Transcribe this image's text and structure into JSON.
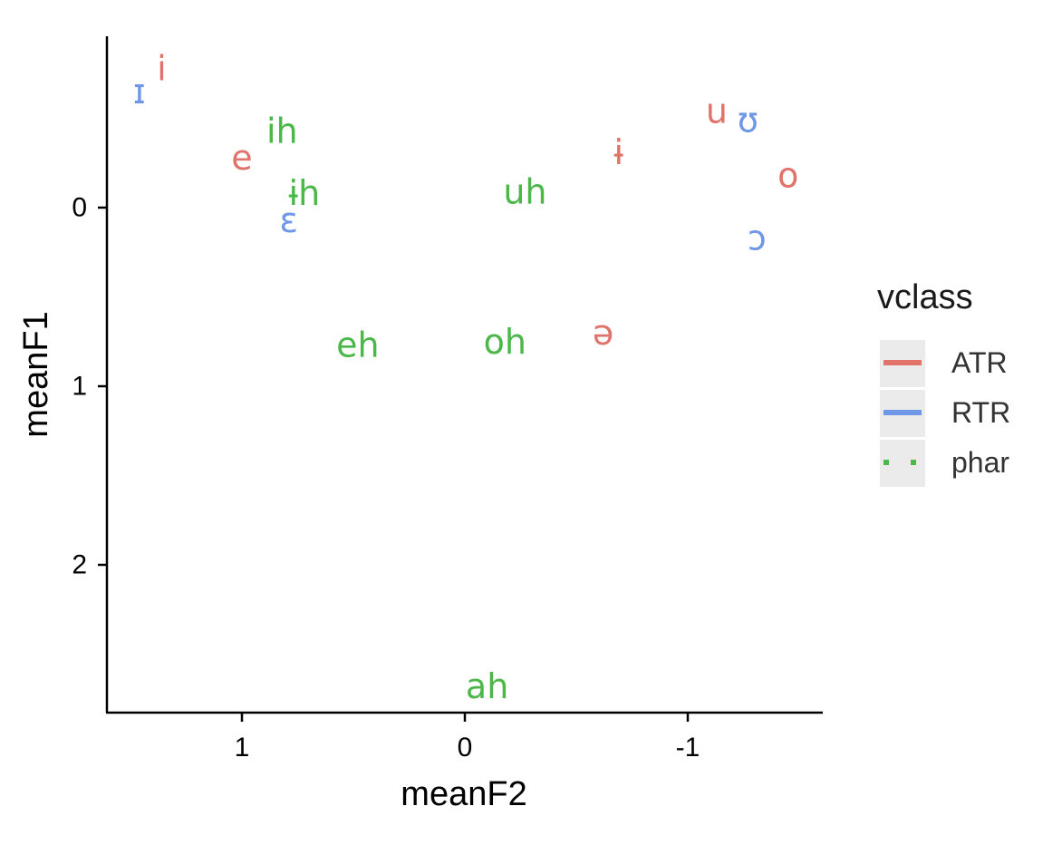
{
  "chart_data": {
    "type": "scatter",
    "xlabel": "meanF2",
    "ylabel": "meanF1",
    "x_reversed": true,
    "y_reversed": true,
    "xlim": [
      1.6,
      -1.6
    ],
    "ylim": [
      -0.96,
      2.82
    ],
    "x_ticks": [
      1,
      0,
      -1
    ],
    "x_tick_labels": [
      "1",
      "0",
      "-1"
    ],
    "y_ticks": [
      0,
      1,
      2
    ],
    "y_tick_labels": [
      "0",
      "1",
      "2"
    ],
    "grid": false,
    "legend": {
      "title": "vclass",
      "placement": "right",
      "entries": [
        {
          "label": "ATR",
          "color": "#E0736A",
          "line": "solid"
        },
        {
          "label": "RTR",
          "color": "#6F97E8",
          "line": "solid"
        },
        {
          "label": "phar",
          "color": "#4CB84A",
          "line": "dotted"
        }
      ]
    },
    "series": [
      {
        "name": "ATR",
        "color": "#E0736A",
        "points": [
          {
            "label": "i",
            "x": 1.36,
            "y": -0.78
          },
          {
            "label": "e",
            "x": 1.0,
            "y": -0.28
          },
          {
            "label": "u",
            "x": -1.13,
            "y": -0.54
          },
          {
            "label": "ɨ",
            "x": -0.69,
            "y": -0.31
          },
          {
            "label": "o",
            "x": -1.45,
            "y": -0.18
          },
          {
            "label": "ə",
            "x": -0.62,
            "y": 0.7
          }
        ]
      },
      {
        "name": "RTR",
        "color": "#6F97E8",
        "points": [
          {
            "label": "ɪ",
            "x": 1.46,
            "y": -0.65
          },
          {
            "label": "ɛ",
            "x": 0.79,
            "y": 0.07
          },
          {
            "label": "ʊ",
            "x": -1.27,
            "y": -0.49
          },
          {
            "label": "ɔ",
            "x": -1.31,
            "y": 0.17
          }
        ]
      },
      {
        "name": "phar",
        "color": "#4CB84A",
        "points": [
          {
            "label": "ih",
            "x": 0.82,
            "y": -0.43
          },
          {
            "label": "ɨh",
            "x": 0.72,
            "y": -0.08
          },
          {
            "label": "uh",
            "x": -0.27,
            "y": -0.09
          },
          {
            "label": "eh",
            "x": 0.48,
            "y": 0.77
          },
          {
            "label": "oh",
            "x": -0.18,
            "y": 0.75
          },
          {
            "label": "ah",
            "x": -0.1,
            "y": 2.68
          }
        ]
      }
    ]
  }
}
